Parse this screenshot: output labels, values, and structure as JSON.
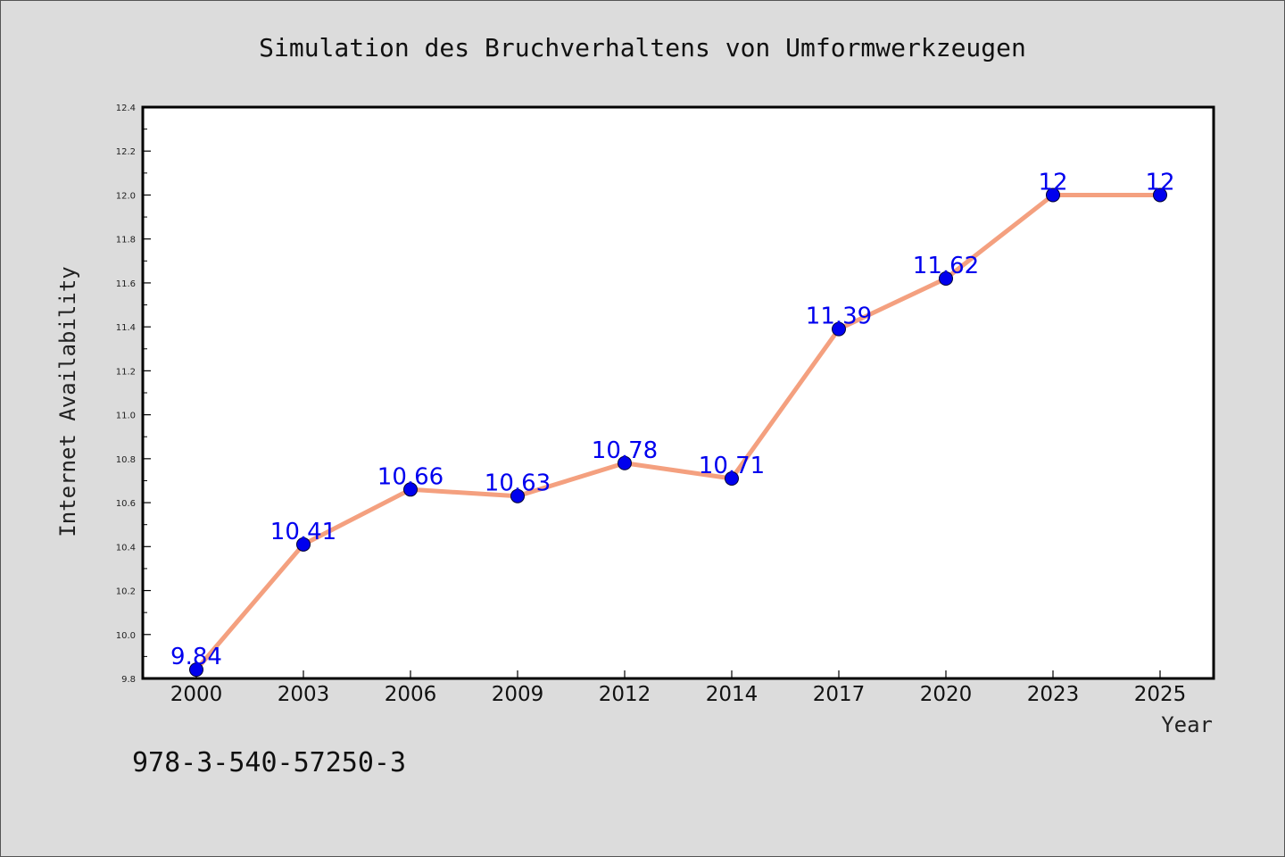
{
  "chart_data": {
    "type": "line",
    "title": "Simulation des Bruchverhaltens von Umformwerkzeugen",
    "xlabel": "Year",
    "ylabel": "Internet Availability",
    "categories": [
      "2000",
      "2003",
      "2006",
      "2009",
      "2012",
      "2014",
      "2017",
      "2020",
      "2023",
      "2025"
    ],
    "values": [
      9.84,
      10.41,
      10.66,
      10.63,
      10.78,
      10.71,
      11.39,
      11.62,
      12,
      12
    ],
    "data_labels": [
      "9.84",
      "10.41",
      "10.66",
      "10.63",
      "10.78",
      "10.71",
      "11.39",
      "11.62",
      "12",
      "12"
    ],
    "ylim": [
      9.8,
      12.4
    ],
    "yticks": [
      "9.8",
      "10.0",
      "10.2",
      "10.4",
      "10.6",
      "10.8",
      "11.0",
      "11.2",
      "11.4",
      "11.6",
      "11.8",
      "12.0",
      "12.2",
      "12.4"
    ],
    "grid": false,
    "line_color": "#f4a07f",
    "marker_color": "#0000ee",
    "label_color": "#0000ee"
  },
  "footnote": "978-3-540-57250-3"
}
